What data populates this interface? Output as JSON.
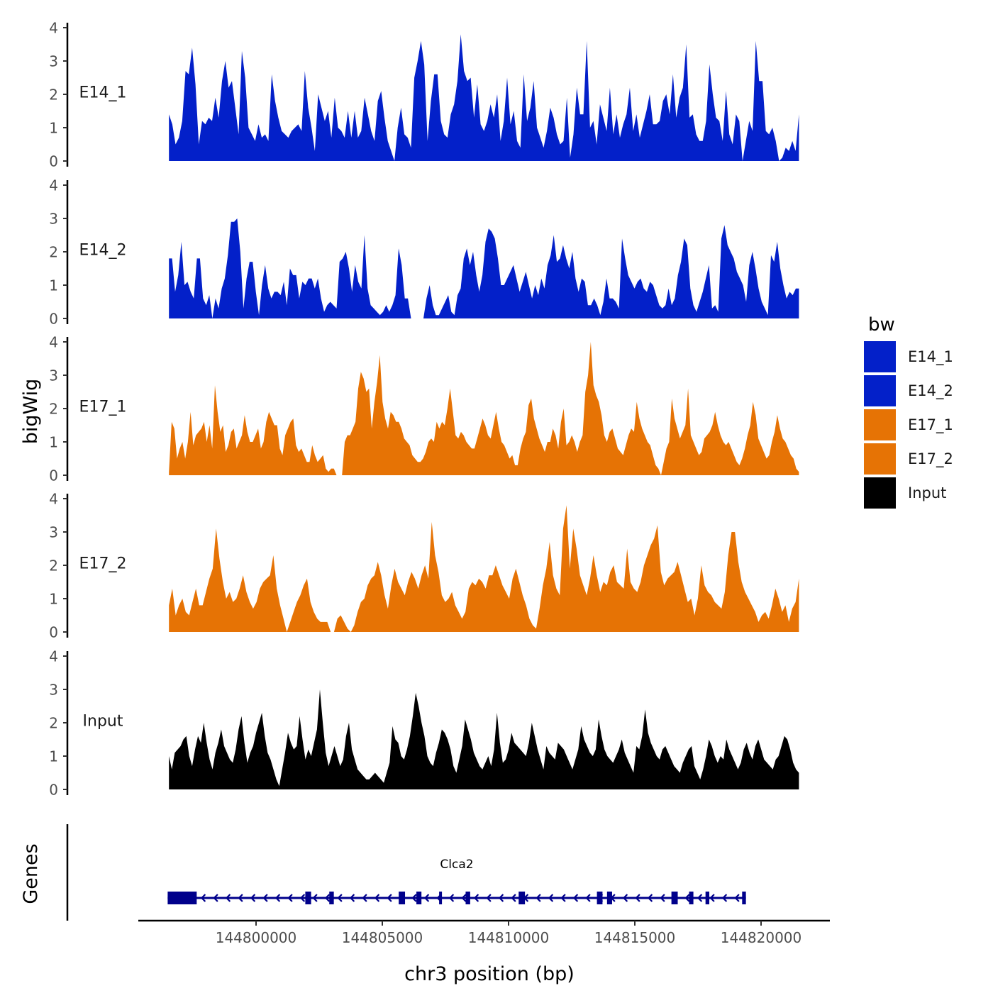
{
  "chart_data": {
    "type": "area",
    "subtype": "genome-track-plot",
    "y_axis_title": "bigWig",
    "genes_axis_title": "Genes",
    "xlabel": "chr3 position (bp)",
    "x_range": [
      144795500,
      144822000
    ],
    "x_ticks": [
      144800000,
      144805000,
      144810000,
      144815000,
      144820000
    ],
    "x_tick_labels": [
      "144800000",
      "144805000",
      "144810000",
      "144815000",
      "144820000"
    ],
    "ylim": [
      0,
      4
    ],
    "y_ticks": [
      0,
      1,
      2,
      3,
      4
    ],
    "y_tick_labels": [
      "0",
      "1",
      "2",
      "3",
      "4"
    ],
    "legend": {
      "title": "bw",
      "position": "right",
      "entries": [
        {
          "label": "E14_1",
          "color": "#0320C9"
        },
        {
          "label": "E14_2",
          "color": "#0320C9"
        },
        {
          "label": "E17_1",
          "color": "#E67305"
        },
        {
          "label": "E17_2",
          "color": "#E67305"
        },
        {
          "label": "Input",
          "color": "#000000"
        }
      ]
    },
    "tracks": [
      {
        "name": "E14_1",
        "color": "#0320C9",
        "x_start": 144796550,
        "x_end": 144821500,
        "values": [
          1.4,
          1.1,
          0.5,
          0.7,
          1.2,
          2.7,
          2.6,
          3.4,
          2.3,
          0.5,
          1.2,
          1.1,
          1.3,
          1.2,
          1.9,
          1.3,
          2.4,
          3.0,
          2.2,
          2.4,
          1.6,
          0.8,
          3.3,
          2.5,
          1.0,
          0.8,
          0.6,
          1.1,
          0.7,
          0.8,
          0.6,
          2.6,
          1.8,
          1.3,
          0.9,
          0.8,
          0.7,
          0.9,
          1.0,
          1.1,
          0.9,
          2.7,
          1.6,
          1.0,
          0.3,
          2.0,
          1.6,
          1.2,
          1.5,
          0.7,
          1.9,
          1.0,
          0.9,
          0.7,
          1.5,
          0.7,
          1.5,
          0.7,
          0.9,
          1.9,
          1.4,
          0.9,
          0.6,
          1.8,
          2.1,
          1.3,
          0.6,
          0.3,
          0.0,
          1.0,
          1.6,
          0.8,
          0.7,
          0.4,
          2.5,
          3.0,
          3.6,
          2.9,
          0.6,
          1.8,
          2.6,
          2.6,
          1.2,
          0.8,
          0.7,
          1.4,
          1.7,
          2.4,
          3.8,
          2.7,
          2.4,
          2.5,
          1.3,
          2.3,
          1.1,
          0.9,
          1.2,
          1.7,
          1.3,
          2.0,
          0.6,
          1.2,
          2.5,
          1.1,
          1.5,
          0.6,
          0.4,
          2.6,
          1.2,
          1.6,
          2.4,
          1.0,
          0.7,
          0.4,
          0.9,
          1.6,
          1.3,
          0.8,
          0.5,
          0.6,
          1.9,
          0.1,
          0.8,
          2.2,
          1.4,
          1.4,
          3.6,
          1.0,
          1.2,
          0.5,
          1.7,
          1.3,
          0.9,
          2.2,
          0.8,
          1.4,
          0.7,
          1.1,
          1.4,
          2.2,
          0.9,
          1.4,
          0.7,
          1.1,
          1.5,
          2.0,
          1.1,
          1.1,
          1.2,
          1.8,
          2.0,
          1.4,
          2.6,
          1.3,
          1.9,
          2.2,
          3.5,
          1.3,
          1.4,
          0.8,
          0.6,
          0.6,
          1.2,
          2.9,
          2.0,
          1.3,
          1.2,
          0.6,
          2.1,
          0.8,
          0.5,
          1.4,
          1.2,
          0.0,
          0.6,
          1.2,
          0.9,
          3.6,
          2.4,
          2.4,
          0.9,
          0.8,
          1.0,
          0.6,
          0.0,
          0.1,
          0.4,
          0.3,
          0.6,
          0.3,
          1.4
        ]
      },
      {
        "name": "E14_2",
        "color": "#0320C9",
        "x_start": 144796550,
        "x_end": 144821500,
        "values": [
          1.8,
          1.8,
          0.8,
          1.3,
          2.3,
          1.0,
          1.1,
          0.8,
          0.6,
          1.8,
          1.8,
          0.6,
          0.4,
          0.7,
          0.0,
          0.6,
          0.3,
          0.9,
          1.2,
          1.9,
          2.9,
          2.9,
          3.0,
          2.0,
          0.3,
          1.2,
          1.7,
          1.7,
          0.8,
          0.1,
          1.0,
          1.6,
          0.9,
          0.6,
          0.8,
          0.8,
          0.7,
          1.1,
          0.4,
          1.5,
          1.3,
          1.3,
          0.6,
          1.1,
          1.0,
          1.2,
          1.2,
          0.9,
          1.2,
          0.6,
          0.2,
          0.4,
          0.5,
          0.4,
          0.3,
          1.7,
          1.8,
          2.0,
          1.5,
          0.8,
          1.6,
          1.1,
          0.9,
          2.5,
          0.9,
          0.4,
          0.3,
          0.2,
          0.1,
          0.2,
          0.4,
          0.2,
          0.4,
          0.7,
          2.1,
          1.6,
          0.6,
          0.6,
          0.0,
          0.0,
          0.0,
          0.0,
          0.0,
          0.6,
          1.0,
          0.4,
          0.1,
          0.1,
          0.3,
          0.5,
          0.7,
          0.2,
          0.1,
          0.7,
          0.9,
          1.8,
          2.1,
          1.6,
          2.0,
          1.3,
          0.8,
          1.3,
          2.3,
          2.7,
          2.6,
          2.4,
          1.8,
          1.0,
          1.0,
          1.2,
          1.4,
          1.6,
          1.2,
          0.8,
          1.1,
          1.4,
          1.0,
          0.6,
          1.0,
          0.7,
          1.2,
          0.9,
          1.6,
          1.9,
          2.5,
          1.7,
          1.8,
          2.2,
          1.8,
          1.5,
          2.0,
          1.2,
          0.8,
          1.2,
          1.1,
          0.4,
          0.4,
          0.6,
          0.4,
          0.1,
          0.5,
          1.2,
          0.6,
          0.6,
          0.5,
          0.3,
          2.4,
          1.8,
          1.3,
          1.1,
          0.9,
          1.1,
          1.2,
          0.9,
          0.8,
          1.1,
          1.0,
          0.7,
          0.4,
          0.3,
          0.4,
          0.9,
          0.4,
          0.6,
          1.3,
          1.7,
          2.4,
          2.2,
          0.9,
          0.4,
          0.2,
          0.5,
          0.8,
          1.2,
          1.6,
          0.3,
          0.4,
          0.2,
          2.4,
          2.8,
          2.2,
          2.0,
          1.8,
          1.4,
          1.2,
          1.0,
          0.5,
          1.6,
          2.0,
          1.5,
          0.9,
          0.5,
          0.3,
          0.1,
          1.9,
          1.7,
          2.3,
          1.5,
          1.0,
          0.6,
          0.8,
          0.7,
          0.9,
          0.9
        ]
      },
      {
        "name": "E17_1",
        "color": "#E67305",
        "x_start": 144796550,
        "x_end": 144821500,
        "values": [
          0.1,
          1.6,
          1.4,
          0.5,
          0.8,
          1.0,
          0.5,
          1.0,
          1.9,
          0.9,
          1.2,
          1.3,
          1.4,
          1.6,
          1.0,
          1.5,
          0.8,
          2.7,
          1.9,
          1.3,
          1.5,
          0.7,
          0.9,
          1.3,
          1.4,
          0.8,
          1.0,
          1.2,
          1.8,
          1.3,
          1.0,
          1.0,
          1.2,
          1.4,
          0.8,
          1.0,
          1.6,
          1.9,
          1.7,
          1.5,
          1.5,
          0.8,
          0.6,
          1.2,
          1.4,
          1.6,
          1.7,
          0.9,
          0.7,
          0.8,
          0.6,
          0.4,
          0.4,
          0.9,
          0.6,
          0.4,
          0.5,
          0.6,
          0.2,
          0.1,
          0.2,
          0.2,
          0.0,
          0.0,
          0.0,
          1.0,
          1.2,
          1.2,
          1.4,
          1.6,
          2.6,
          3.1,
          2.9,
          2.5,
          2.6,
          1.4,
          2.2,
          2.8,
          3.6,
          2.2,
          1.7,
          1.4,
          1.9,
          1.8,
          1.6,
          1.6,
          1.4,
          1.1,
          1.0,
          0.9,
          0.6,
          0.5,
          0.4,
          0.4,
          0.5,
          0.7,
          1.0,
          1.1,
          1.0,
          1.6,
          1.4,
          1.6,
          1.5,
          2.0,
          2.6,
          1.9,
          1.2,
          1.1,
          1.3,
          1.2,
          1.0,
          0.9,
          0.8,
          0.8,
          1.1,
          1.4,
          1.7,
          1.5,
          1.2,
          1.1,
          1.5,
          1.9,
          1.4,
          1.0,
          0.9,
          0.7,
          0.5,
          0.6,
          0.3,
          0.3,
          0.8,
          1.1,
          1.3,
          2.1,
          2.3,
          1.7,
          1.4,
          1.1,
          0.9,
          0.7,
          1.0,
          1.0,
          1.4,
          1.2,
          0.8,
          1.6,
          2.0,
          0.9,
          1.0,
          1.2,
          1.0,
          0.7,
          1.0,
          1.2,
          2.5,
          3.0,
          4.0,
          2.7,
          2.4,
          2.2,
          1.8,
          1.2,
          1.0,
          1.3,
          1.4,
          1.1,
          0.8,
          0.7,
          0.6,
          0.9,
          1.2,
          1.4,
          1.3,
          2.2,
          1.7,
          1.4,
          1.2,
          1.0,
          0.9,
          0.6,
          0.3,
          0.2,
          0.0,
          0.4,
          0.8,
          1.0,
          2.3,
          1.7,
          1.4,
          1.1,
          1.3,
          1.5,
          2.6,
          1.2,
          1.0,
          0.8,
          0.6,
          0.7,
          1.1,
          1.2,
          1.3,
          1.5,
          1.9,
          1.5,
          1.2,
          1.0,
          0.9,
          1.0,
          0.8,
          0.6,
          0.4,
          0.3,
          0.5,
          0.8,
          1.2,
          1.5,
          2.2,
          1.8,
          1.1,
          0.9,
          0.7,
          0.5,
          0.6,
          1.0,
          1.3,
          1.8,
          1.4,
          1.1,
          1.0,
          0.8,
          0.6,
          0.5,
          0.2,
          0.1
        ]
      },
      {
        "name": "E17_2",
        "color": "#E67305",
        "x_start": 144796550,
        "x_end": 144821500,
        "values": [
          0.8,
          1.3,
          0.5,
          0.8,
          1.0,
          0.6,
          0.5,
          0.9,
          1.3,
          0.8,
          0.8,
          1.2,
          1.6,
          1.9,
          3.1,
          2.2,
          1.5,
          1.0,
          1.2,
          0.9,
          1.0,
          1.3,
          1.7,
          1.2,
          0.9,
          0.7,
          0.9,
          1.3,
          1.5,
          1.6,
          1.7,
          2.3,
          1.3,
          0.8,
          0.4,
          0.0,
          0.3,
          0.6,
          0.9,
          1.1,
          1.4,
          1.6,
          0.9,
          0.6,
          0.4,
          0.3,
          0.3,
          0.3,
          0.0,
          0.0,
          0.4,
          0.5,
          0.3,
          0.1,
          0.0,
          0.2,
          0.6,
          0.9,
          1.0,
          1.4,
          1.6,
          1.7,
          2.1,
          1.7,
          1.1,
          0.7,
          1.4,
          1.9,
          1.5,
          1.3,
          1.1,
          1.5,
          1.8,
          1.6,
          1.3,
          1.7,
          2.0,
          1.6,
          3.3,
          2.3,
          1.8,
          1.1,
          0.9,
          1.0,
          1.2,
          0.8,
          0.6,
          0.4,
          0.6,
          1.3,
          1.5,
          1.4,
          1.6,
          1.5,
          1.3,
          1.7,
          1.7,
          2.0,
          1.7,
          1.4,
          1.2,
          1.0,
          1.6,
          1.9,
          1.5,
          1.1,
          0.8,
          0.4,
          0.2,
          0.1,
          0.7,
          1.4,
          1.9,
          2.7,
          1.7,
          1.3,
          1.1,
          3.1,
          3.8,
          1.9,
          3.1,
          2.5,
          1.7,
          1.4,
          1.1,
          1.6,
          2.3,
          1.7,
          1.2,
          1.5,
          1.4,
          1.8,
          2.0,
          1.5,
          1.4,
          1.3,
          2.5,
          1.5,
          1.3,
          1.2,
          1.5,
          2.0,
          2.3,
          2.6,
          2.8,
          3.2,
          1.8,
          1.4,
          1.6,
          1.7,
          1.8,
          2.1,
          1.7,
          1.3,
          0.9,
          1.0,
          0.5,
          1.0,
          2.0,
          1.4,
          1.2,
          1.1,
          0.9,
          0.8,
          0.7,
          1.2,
          2.3,
          3.0,
          3.0,
          2.1,
          1.5,
          1.2,
          1.0,
          0.8,
          0.6,
          0.3,
          0.5,
          0.6,
          0.4,
          0.8,
          1.3,
          1.0,
          0.6,
          0.8,
          0.3,
          0.7,
          0.9,
          1.6
        ]
      },
      {
        "name": "Input",
        "color": "#000000",
        "x_start": 144796550,
        "x_end": 144821500,
        "values": [
          1.0,
          0.6,
          1.1,
          1.2,
          1.3,
          1.5,
          1.6,
          1.0,
          0.7,
          1.2,
          1.6,
          1.4,
          2.0,
          1.4,
          0.9,
          0.6,
          1.1,
          1.4,
          1.8,
          1.3,
          1.1,
          0.9,
          0.8,
          1.2,
          1.8,
          2.2,
          1.4,
          0.8,
          1.1,
          1.3,
          1.7,
          2.0,
          2.3,
          1.6,
          1.1,
          0.9,
          0.6,
          0.3,
          0.1,
          0.6,
          1.1,
          1.7,
          1.4,
          1.2,
          1.3,
          2.2,
          1.5,
          0.9,
          1.2,
          1.0,
          1.4,
          1.8,
          3.0,
          2.0,
          1.1,
          0.7,
          1.0,
          1.3,
          1.0,
          0.7,
          0.9,
          1.6,
          2.0,
          1.2,
          0.9,
          0.6,
          0.5,
          0.4,
          0.3,
          0.3,
          0.4,
          0.5,
          0.4,
          0.3,
          0.2,
          0.5,
          0.8,
          1.9,
          1.5,
          1.4,
          1.0,
          0.9,
          1.2,
          1.6,
          2.2,
          2.9,
          2.5,
          2.0,
          1.6,
          1.0,
          0.8,
          0.7,
          1.1,
          1.4,
          1.8,
          1.7,
          1.5,
          1.2,
          0.7,
          0.5,
          0.9,
          1.3,
          2.1,
          1.8,
          1.5,
          1.1,
          0.9,
          0.7,
          0.6,
          0.8,
          1.0,
          0.7,
          1.2,
          2.3,
          1.4,
          0.8,
          0.9,
          1.2,
          1.7,
          1.4,
          1.3,
          1.2,
          1.1,
          1.0,
          1.4,
          2.0,
          1.6,
          1.2,
          0.9,
          0.6,
          1.3,
          1.1,
          1.0,
          0.9,
          1.4,
          1.3,
          1.2,
          1.0,
          0.8,
          0.6,
          0.9,
          1.2,
          1.9,
          1.5,
          1.3,
          1.1,
          1.0,
          1.2,
          2.1,
          1.6,
          1.2,
          1.0,
          0.9,
          0.8,
          1.0,
          1.2,
          1.5,
          1.1,
          0.9,
          0.7,
          0.5,
          1.3,
          1.2,
          1.6,
          2.4,
          1.7,
          1.4,
          1.2,
          1.0,
          0.9,
          1.2,
          1.3,
          1.1,
          0.9,
          0.7,
          0.6,
          0.5,
          0.8,
          1.0,
          1.2,
          1.3,
          0.7,
          0.5,
          0.3,
          0.6,
          1.0,
          1.5,
          1.3,
          1.0,
          0.8,
          1.0,
          0.9,
          1.5,
          1.2,
          1.0,
          0.8,
          0.6,
          0.8,
          1.2,
          1.4,
          1.1,
          0.9,
          1.3,
          1.5,
          1.2,
          0.9,
          0.8,
          0.7,
          0.6,
          0.9,
          1.0,
          1.3,
          1.6,
          1.5,
          1.2,
          0.8,
          0.6,
          0.5
        ]
      }
    ],
    "genes": [
      {
        "name": "Clca2",
        "strand": "-",
        "start": 144796500,
        "end": 144819400,
        "exons": [
          [
            144796500,
            144797650
          ],
          [
            144801950,
            144802180
          ],
          [
            144802900,
            144803080
          ],
          [
            144805650,
            144805900
          ],
          [
            144806350,
            144806550
          ],
          [
            144807250,
            144807320
          ],
          [
            144808300,
            144808480
          ],
          [
            144810400,
            144810650
          ],
          [
            144813500,
            144813720
          ],
          [
            144813900,
            144814100
          ],
          [
            144816450,
            144816700
          ],
          [
            144817150,
            144817320
          ],
          [
            144817800,
            144817950
          ],
          [
            144819250,
            144819400
          ]
        ]
      }
    ]
  }
}
